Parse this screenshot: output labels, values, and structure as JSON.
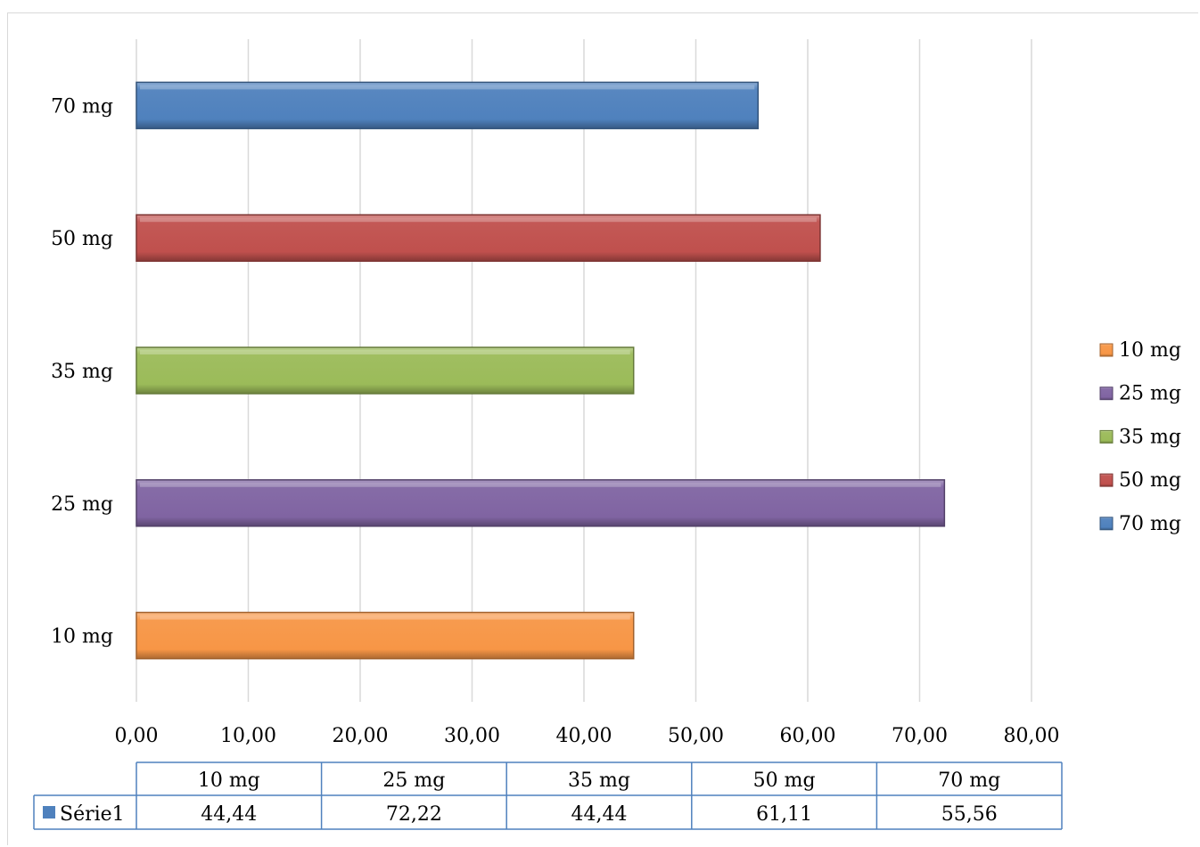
{
  "chart_data": {
    "type": "bar",
    "orientation": "horizontal",
    "title": "",
    "xlabel": "",
    "ylabel": "",
    "categories": [
      "10 mg",
      "25 mg",
      "35 mg",
      "50 mg",
      "70 mg"
    ],
    "series": [
      {
        "name": "Série1",
        "values": [
          44.44,
          72.22,
          44.44,
          61.11,
          55.56
        ]
      }
    ],
    "value_labels": [
      "44,44",
      "72,22",
      "44,44",
      "61,11",
      "55,56"
    ],
    "xlim": [
      0,
      80
    ],
    "x_ticks": [
      0,
      10,
      20,
      30,
      40,
      50,
      60,
      70,
      80
    ],
    "x_tick_labels": [
      "0,00",
      "10,00",
      "20,00",
      "30,00",
      "40,00",
      "50,00",
      "60,00",
      "70,00",
      "80,00"
    ],
    "grid": "vertical",
    "legend_position": "right",
    "legend_entries": [
      "10 mg",
      "25 mg",
      "35 mg",
      "50 mg",
      "70 mg"
    ],
    "colors": {
      "10 mg": "#f79646",
      "25 mg": "#8064a2",
      "35 mg": "#9bbb59",
      "50 mg": "#c0504d",
      "70 mg": "#4f81bd"
    },
    "data_table": true
  }
}
